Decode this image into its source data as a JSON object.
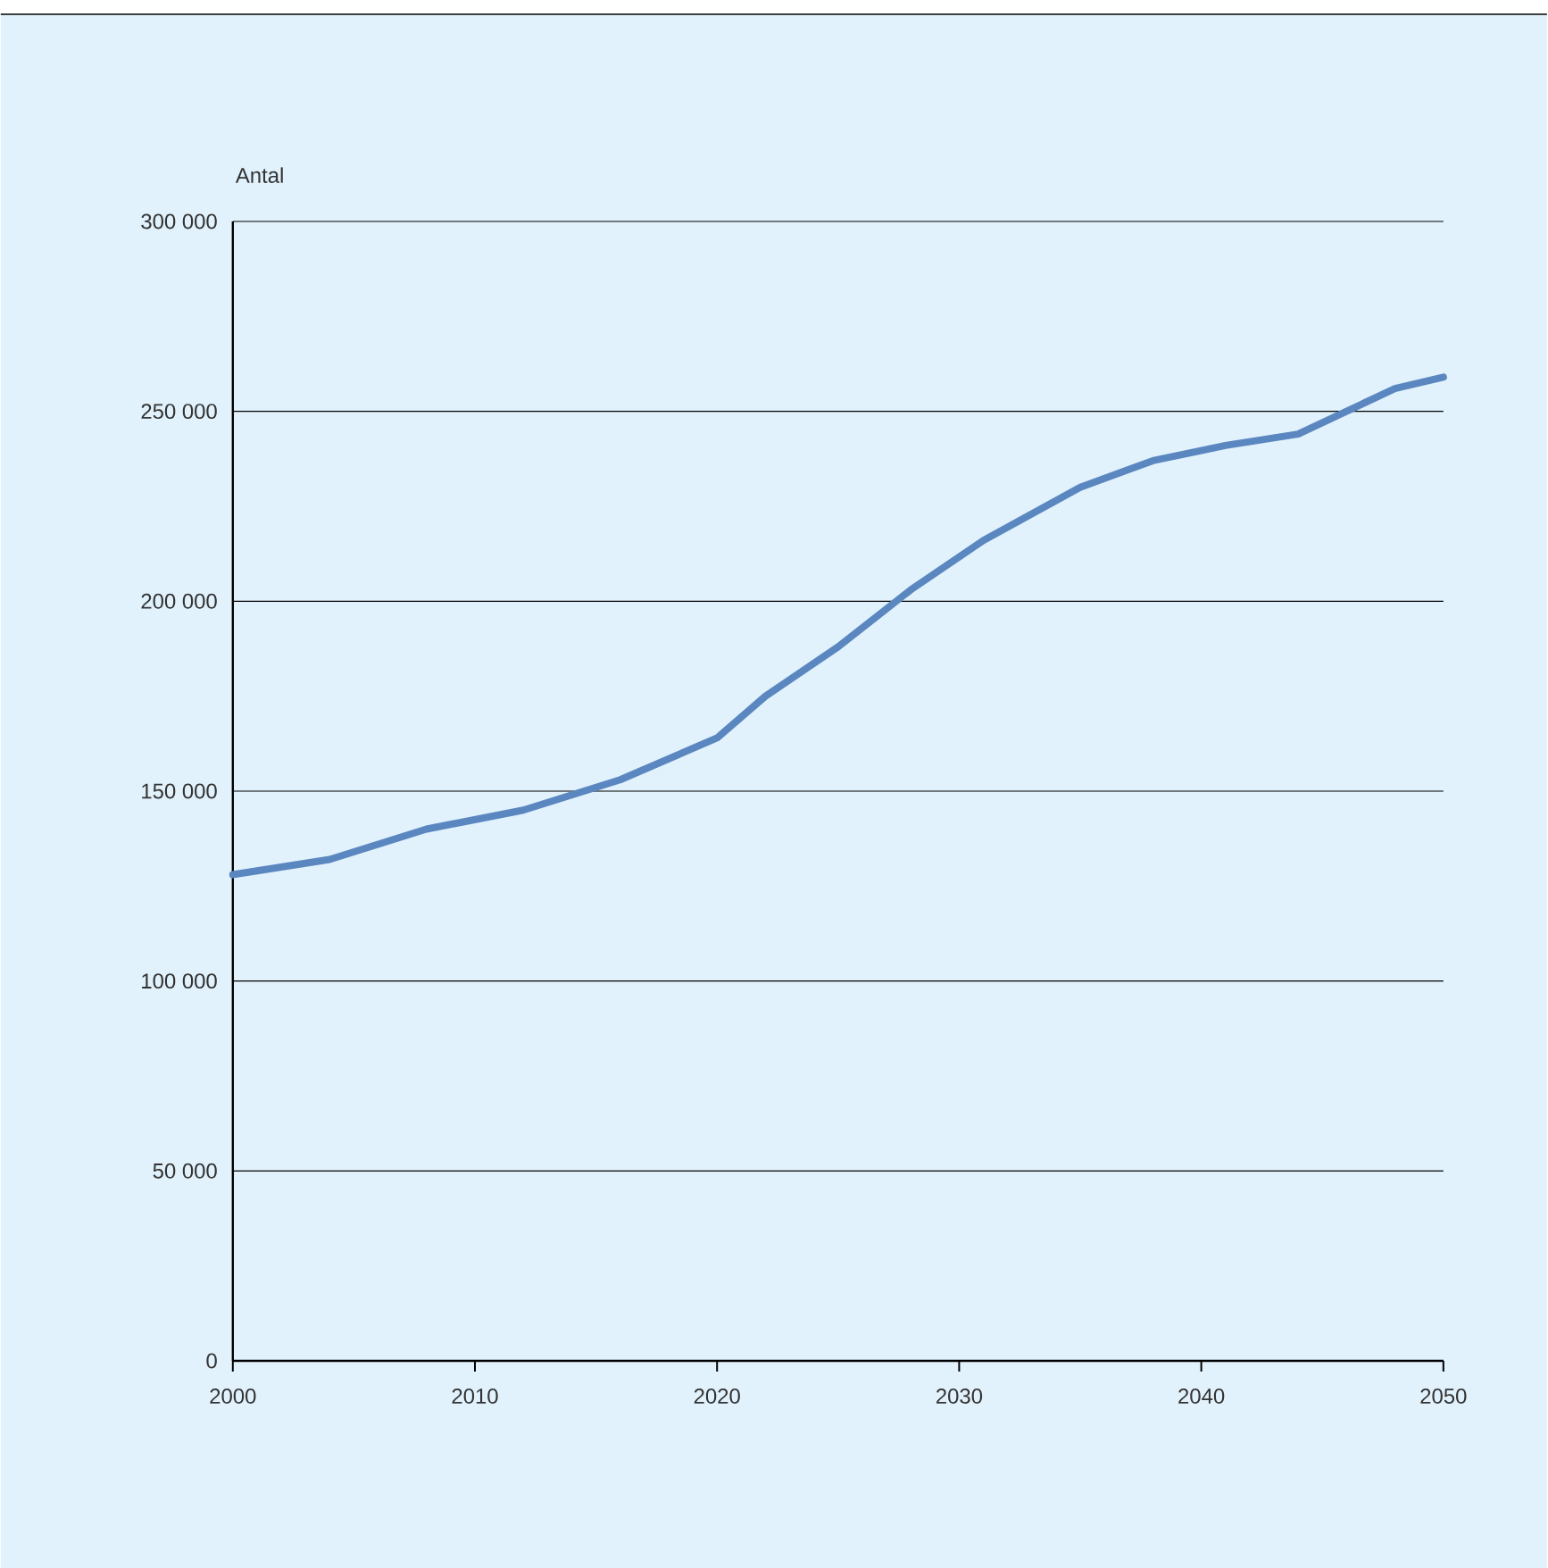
{
  "chart_data": {
    "type": "line",
    "ylabel": "Antal",
    "x": [
      2000,
      2004,
      2008,
      2012,
      2016,
      2020,
      2022,
      2025,
      2028,
      2031,
      2035,
      2038,
      2041,
      2044,
      2046,
      2048,
      2050
    ],
    "series": [
      {
        "color": "#5b87c0",
        "values": [
          128000,
          132000,
          140000,
          145000,
          153000,
          164000,
          175000,
          188000,
          203000,
          216000,
          230000,
          237000,
          241000,
          244000,
          250000,
          256000,
          259000
        ]
      }
    ],
    "xlim": [
      2000,
      2050
    ],
    "xticks": [
      2000,
      2010,
      2020,
      2030,
      2040,
      2050
    ],
    "ylim": [
      0,
      300000
    ],
    "yticks": [
      0,
      {
        "value": 50000,
        "label": "50 000"
      },
      {
        "value": 100000,
        "label": "100 000"
      },
      {
        "value": 150000,
        "label": "150 000"
      },
      {
        "value": 200000,
        "label": "200 000"
      },
      {
        "value": 250000,
        "label": "250 000"
      },
      {
        "value": 300000,
        "label": "300 000"
      }
    ],
    "grid": "y",
    "marker": "none",
    "line_style": "solid"
  }
}
